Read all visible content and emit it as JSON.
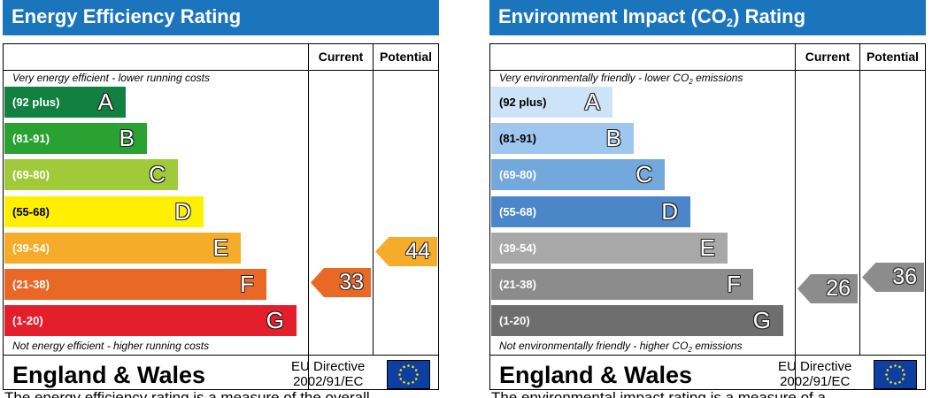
{
  "energy": {
    "title": "Energy Efficiency Rating",
    "col_current": "Current",
    "col_potential": "Potential",
    "top_note": "Very energy efficient - lower running costs",
    "bottom_note": "Not energy efficient - higher running costs",
    "bands": [
      {
        "range": "(92 plus)",
        "letter": "A",
        "color": "#118040"
      },
      {
        "range": "(81-91)",
        "letter": "B",
        "color": "#2aa133"
      },
      {
        "range": "(69-80)",
        "letter": "C",
        "color": "#a1ca3b"
      },
      {
        "range": "(55-68)",
        "letter": "D",
        "color": "#ffef00"
      },
      {
        "range": "(39-54)",
        "letter": "E",
        "color": "#f4ac29"
      },
      {
        "range": "(21-38)",
        "letter": "F",
        "color": "#ea6825"
      },
      {
        "range": "(1-20)",
        "letter": "G",
        "color": "#e41e2a"
      }
    ],
    "current": {
      "value": "33",
      "color": "#ea6825"
    },
    "potential": {
      "value": "44",
      "color": "#f4ac29"
    },
    "footer_region": "England & Wales",
    "footer_directive_1": "EU Directive",
    "footer_directive_2": "2002/91/EC",
    "cut_text": "The energy efficiency rating is a measure of the overall"
  },
  "environment": {
    "title_pre": "Environment Impact (CO",
    "title_sub": "2",
    "title_post": ") Rating",
    "col_current": "Current",
    "col_potential": "Potential",
    "top_note_pre": "Very environmentally friendly - lower CO",
    "top_note_sub": "2",
    "top_note_post": " emissions",
    "bottom_note_pre": "Not environmentally friendly - higher CO",
    "bottom_note_sub": "2",
    "bottom_note_post": " emissions",
    "bands": [
      {
        "range": "(92 plus)",
        "letter": "A",
        "color": "#cde3f7"
      },
      {
        "range": "(81-91)",
        "letter": "B",
        "color": "#9ec6ee"
      },
      {
        "range": "(69-80)",
        "letter": "C",
        "color": "#72a8dc"
      },
      {
        "range": "(55-68)",
        "letter": "D",
        "color": "#4a86c8"
      },
      {
        "range": "(39-54)",
        "letter": "E",
        "color": "#a8a8a8"
      },
      {
        "range": "(21-38)",
        "letter": "F",
        "color": "#8c8c8c"
      },
      {
        "range": "(1-20)",
        "letter": "G",
        "color": "#6e6e6e"
      }
    ],
    "current": {
      "value": "26",
      "color": "#8c8c8c"
    },
    "potential": {
      "value": "36",
      "color": "#8c8c8c"
    },
    "footer_region": "England & Wales",
    "footer_directive_1": "EU Directive",
    "footer_directive_2": "2002/91/EC",
    "cut_text": "The environmental impact rating is a measure of a"
  }
}
